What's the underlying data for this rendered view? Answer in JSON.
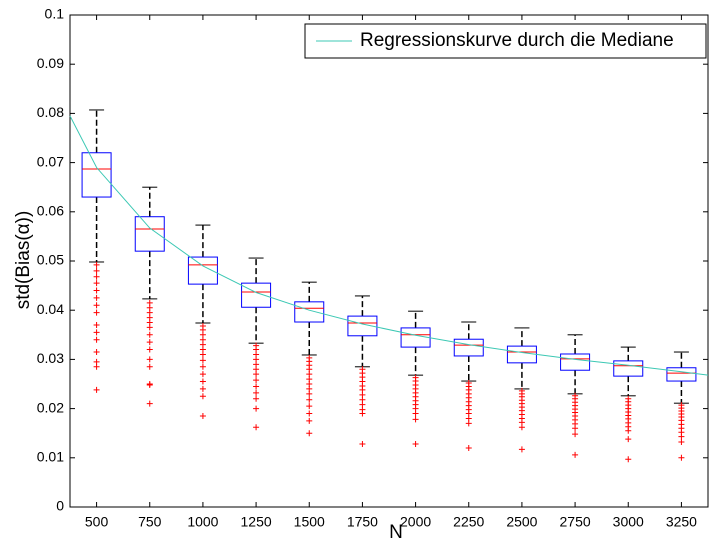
{
  "chart_data": {
    "type": "boxplot",
    "xlabel": "N",
    "ylabel": "std(Bias(α))",
    "xlim": [
      375,
      3375
    ],
    "xticks": [
      500,
      750,
      1000,
      1250,
      1500,
      1750,
      2000,
      2250,
      2500,
      2750,
      3000,
      3250
    ],
    "ylim": [
      0,
      0.1
    ],
    "yticks": [
      0,
      0.01,
      0.02,
      0.03,
      0.04,
      0.05,
      0.06,
      0.07,
      0.08,
      0.09,
      0.1
    ],
    "box_color": "#0000ff",
    "median_color": "#ff0000",
    "whisker_color": "#000000",
    "outlier_color": "#ff0000",
    "legend_position": "upper right",
    "boxes": [
      {
        "x": 500,
        "whisker_high": 0.0807,
        "q3": 0.072,
        "median": 0.0687,
        "q1": 0.063,
        "whisker_low": 0.0498,
        "outliers": [
          0.0492,
          0.048,
          0.0468,
          0.0455,
          0.044,
          0.0425,
          0.041,
          0.0395,
          0.037,
          0.0355,
          0.034,
          0.0315,
          0.0295,
          0.0285,
          0.0238
        ]
      },
      {
        "x": 750,
        "whisker_high": 0.065,
        "q3": 0.059,
        "median": 0.0565,
        "q1": 0.052,
        "whisker_low": 0.0423,
        "outliers": [
          0.0415,
          0.0405,
          0.0395,
          0.0385,
          0.0375,
          0.0365,
          0.035,
          0.0335,
          0.032,
          0.03,
          0.0285,
          0.025,
          0.0248,
          0.021
        ]
      },
      {
        "x": 1000,
        "whisker_high": 0.0573,
        "q3": 0.0508,
        "median": 0.0492,
        "q1": 0.0453,
        "whisker_low": 0.0374,
        "outliers": [
          0.0368,
          0.036,
          0.035,
          0.034,
          0.033,
          0.032,
          0.031,
          0.0298,
          0.0285,
          0.027,
          0.0255,
          0.024,
          0.0225,
          0.0185
        ]
      },
      {
        "x": 1250,
        "whisker_high": 0.0506,
        "q3": 0.0455,
        "median": 0.0437,
        "q1": 0.0406,
        "whisker_low": 0.0333,
        "outliers": [
          0.0328,
          0.032,
          0.031,
          0.03,
          0.029,
          0.028,
          0.027,
          0.0258,
          0.0245,
          0.0232,
          0.022,
          0.02,
          0.0162
        ]
      },
      {
        "x": 1500,
        "whisker_high": 0.0457,
        "q3": 0.0417,
        "median": 0.0404,
        "q1": 0.0376,
        "whisker_low": 0.0309,
        "outliers": [
          0.0303,
          0.0296,
          0.0288,
          0.028,
          0.027,
          0.026,
          0.025,
          0.024,
          0.023,
          0.0218,
          0.0205,
          0.019,
          0.0175,
          0.015
        ]
      },
      {
        "x": 1750,
        "whisker_high": 0.0429,
        "q3": 0.0388,
        "median": 0.0374,
        "q1": 0.0348,
        "whisker_low": 0.0285,
        "outliers": [
          0.028,
          0.0272,
          0.0264,
          0.0255,
          0.0246,
          0.0238,
          0.0228,
          0.0218,
          0.0208,
          0.0198,
          0.019,
          0.0128
        ]
      },
      {
        "x": 2000,
        "whisker_high": 0.0398,
        "q3": 0.0364,
        "median": 0.035,
        "q1": 0.0325,
        "whisker_low": 0.0268,
        "outliers": [
          0.0263,
          0.0256,
          0.0248,
          0.024,
          0.0232,
          0.0224,
          0.0216,
          0.0208,
          0.02,
          0.019,
          0.0178,
          0.0128
        ]
      },
      {
        "x": 2250,
        "whisker_high": 0.0376,
        "q3": 0.0341,
        "median": 0.0329,
        "q1": 0.0307,
        "whisker_low": 0.0256,
        "outliers": [
          0.0252,
          0.0245,
          0.0238,
          0.023,
          0.0222,
          0.0214,
          0.0206,
          0.0198,
          0.019,
          0.018,
          0.017,
          0.012
        ]
      },
      {
        "x": 2500,
        "whisker_high": 0.0364,
        "q3": 0.0327,
        "median": 0.0315,
        "q1": 0.0293,
        "whisker_low": 0.024,
        "outliers": [
          0.0236,
          0.023,
          0.0224,
          0.0217,
          0.021,
          0.0203,
          0.0196,
          0.0188,
          0.018,
          0.0172,
          0.0162,
          0.0117
        ]
      },
      {
        "x": 2750,
        "whisker_high": 0.035,
        "q3": 0.0311,
        "median": 0.0301,
        "q1": 0.0278,
        "whisker_low": 0.023,
        "outliers": [
          0.0226,
          0.022,
          0.0213,
          0.0206,
          0.0199,
          0.0192,
          0.0185,
          0.0177,
          0.0169,
          0.016,
          0.0148,
          0.0106
        ]
      },
      {
        "x": 3000,
        "whisker_high": 0.0325,
        "q3": 0.0297,
        "median": 0.0287,
        "q1": 0.0266,
        "whisker_low": 0.0226,
        "outliers": [
          0.022,
          0.0214,
          0.0207,
          0.02,
          0.0193,
          0.0186,
          0.0179,
          0.0171,
          0.0163,
          0.0155,
          0.0138,
          0.0097
        ]
      },
      {
        "x": 3250,
        "whisker_high": 0.0315,
        "q3": 0.0283,
        "median": 0.0272,
        "q1": 0.0256,
        "whisker_low": 0.0211,
        "outliers": [
          0.0207,
          0.0201,
          0.0195,
          0.0189,
          0.0183,
          0.0176,
          0.0168,
          0.016,
          0.0152,
          0.0143,
          0.0132,
          0.01
        ]
      }
    ],
    "series": [
      {
        "name": "Regressionskurve durch die Mediane",
        "color": "#3cc8b4",
        "x": [
          375,
          500,
          750,
          1000,
          1250,
          1500,
          1750,
          2000,
          2250,
          2500,
          2750,
          3000,
          3250,
          3375
        ],
        "values": [
          0.0795,
          0.069,
          0.0567,
          0.049,
          0.0436,
          0.04,
          0.0372,
          0.0349,
          0.033,
          0.0314,
          0.03,
          0.0288,
          0.0275,
          0.0268
        ]
      }
    ]
  }
}
